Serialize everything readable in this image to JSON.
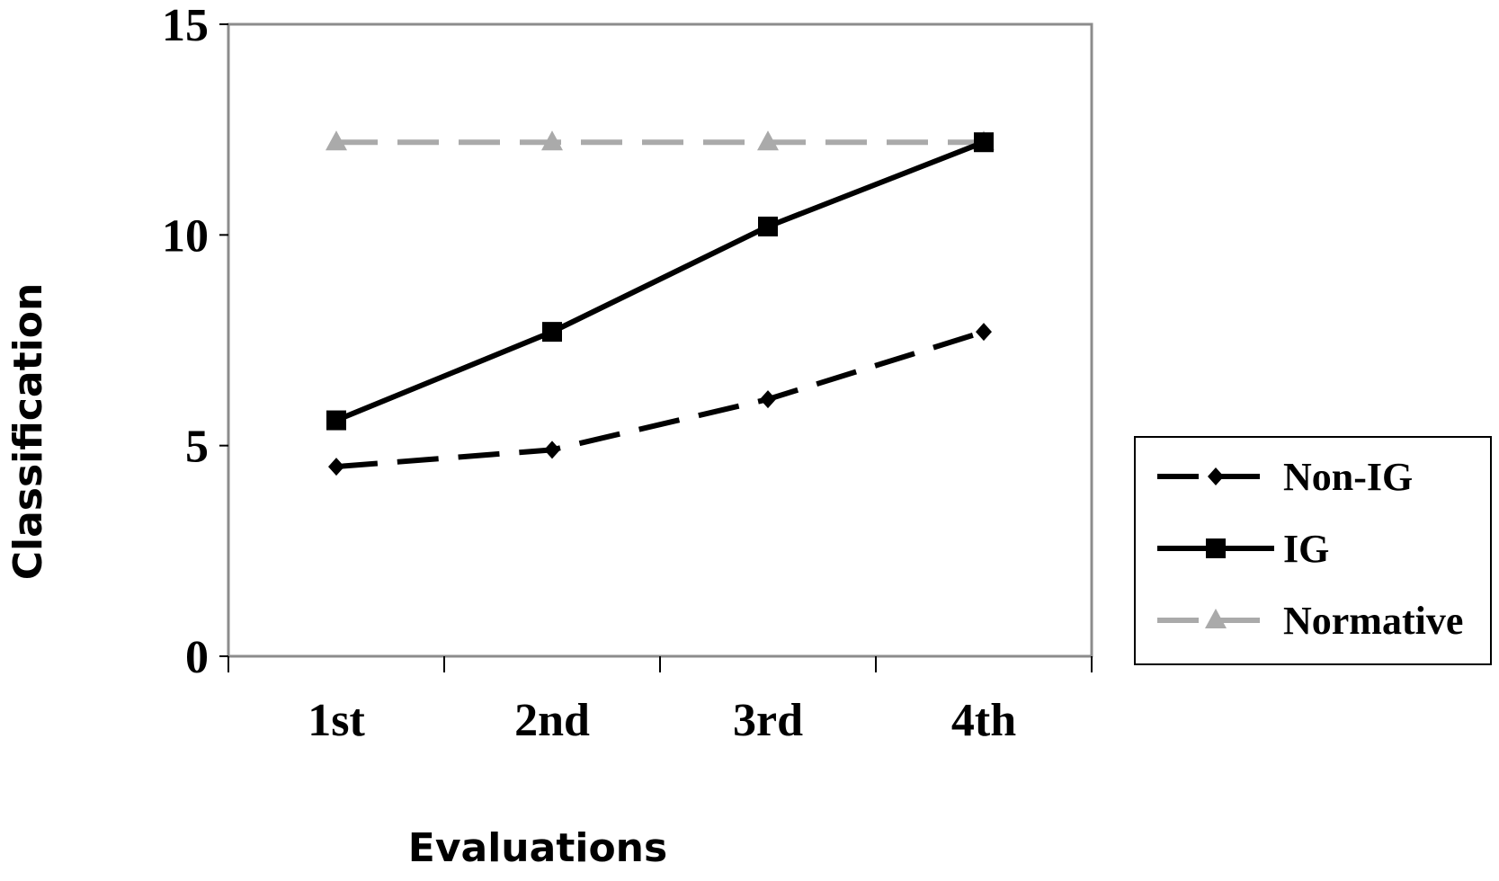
{
  "chart_data": {
    "type": "line",
    "categories": [
      "1st",
      "2nd",
      "3rd",
      "4th"
    ],
    "series": [
      {
        "name": "Non-IG",
        "values": [
          4.5,
          4.9,
          6.1,
          7.7
        ],
        "color": "#000000",
        "line_style": "dashed",
        "marker": "diamond"
      },
      {
        "name": "IG",
        "values": [
          5.6,
          7.7,
          10.2,
          12.2
        ],
        "color": "#000000",
        "line_style": "solid",
        "marker": "square"
      },
      {
        "name": "Normative",
        "values": [
          12.2,
          12.2,
          12.2,
          12.2
        ],
        "color": "#aaaaaa",
        "line_style": "dashed",
        "marker": "triangle"
      }
    ],
    "xlabel": "Evaluations",
    "ylabel": "Classification",
    "ylim": [
      0,
      15
    ],
    "yticks": [
      "0",
      "5",
      "10",
      "15"
    ],
    "grid": false,
    "legend_position": "right"
  }
}
